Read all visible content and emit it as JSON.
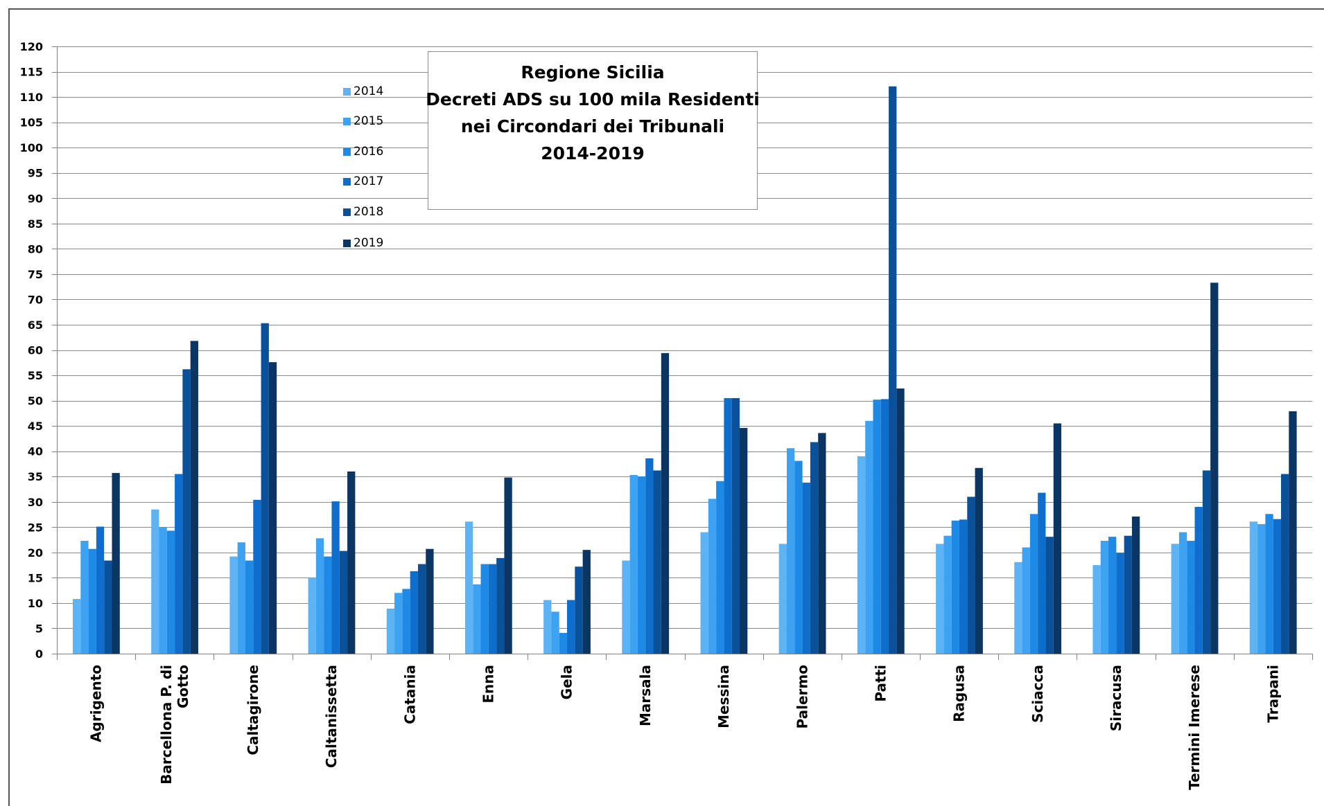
{
  "chart_data": {
    "type": "bar",
    "title_lines": [
      "Regione Sicilia",
      "Decreti ADS su 100 mila Residenti",
      "nei Circondari dei Tribunali",
      "2014-2019"
    ],
    "xlabel": "",
    "ylabel": "",
    "ylim": [
      0,
      120
    ],
    "ytick_step": 5,
    "yticks": [
      "0",
      "5",
      "10",
      "15",
      "20",
      "25",
      "30",
      "35",
      "40",
      "45",
      "50",
      "55",
      "60",
      "65",
      "70",
      "75",
      "80",
      "85",
      "90",
      "95",
      "100",
      "105",
      "110",
      "115",
      "120"
    ],
    "grid": true,
    "legend_position": "top-left",
    "categories": [
      [
        "Agrigento"
      ],
      [
        "Barcellona P. di",
        "Gotto"
      ],
      [
        "Caltagirone"
      ],
      [
        "Caltanissetta"
      ],
      [
        "Catania"
      ],
      [
        "Enna"
      ],
      [
        "Gela"
      ],
      [
        "Marsala"
      ],
      [
        "Messina"
      ],
      [
        "Palermo"
      ],
      [
        "Patti"
      ],
      [
        "Ragusa"
      ],
      [
        "Sciacca"
      ],
      [
        "Siracusa"
      ],
      [
        "Termini Imerese"
      ],
      [
        "Trapani"
      ]
    ],
    "series": [
      {
        "name": "2014",
        "color": "#5eb3f5",
        "values": [
          10.8,
          28.5,
          19.2,
          15.0,
          8.9,
          26.1,
          10.6,
          18.4,
          24.0,
          21.7,
          39.0,
          21.7,
          18.1,
          17.5,
          21.7,
          26.1
        ]
      },
      {
        "name": "2015",
        "color": "#3ea2f2",
        "values": [
          22.3,
          25.0,
          22.0,
          22.8,
          12.0,
          13.7,
          8.3,
          35.3,
          30.6,
          40.6,
          46.0,
          23.3,
          21.0,
          22.3,
          24.0,
          25.6
        ]
      },
      {
        "name": "2016",
        "color": "#1f8ae6",
        "values": [
          20.7,
          24.3,
          18.4,
          19.2,
          12.8,
          17.7,
          4.1,
          35.0,
          34.1,
          38.1,
          50.2,
          26.3,
          27.6,
          23.1,
          22.3,
          27.6
        ]
      },
      {
        "name": "2017",
        "color": "#0f6dcc",
        "values": [
          25.1,
          35.5,
          30.4,
          30.1,
          16.3,
          17.7,
          10.6,
          38.6,
          50.5,
          33.8,
          50.3,
          26.5,
          31.8,
          19.9,
          29.0,
          26.6
        ]
      },
      {
        "name": "2018",
        "color": "#0b519a",
        "values": [
          18.4,
          56.2,
          65.3,
          20.3,
          17.7,
          18.9,
          17.2,
          36.2,
          50.5,
          41.8,
          112.1,
          31.0,
          23.1,
          23.3,
          36.2,
          35.5
        ]
      },
      {
        "name": "2019",
        "color": "#0b3563",
        "values": [
          35.7,
          61.8,
          57.6,
          36.0,
          20.7,
          34.8,
          20.5,
          59.4,
          44.6,
          43.6,
          52.4,
          36.7,
          45.5,
          27.1,
          73.3,
          47.9
        ]
      }
    ]
  }
}
